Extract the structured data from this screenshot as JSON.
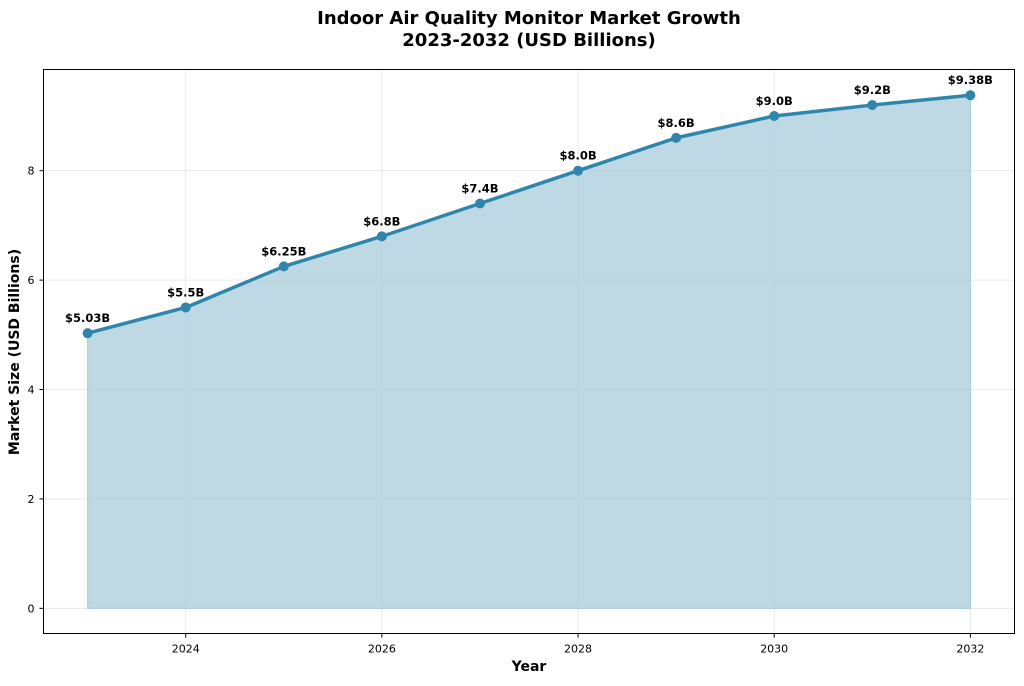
{
  "chart_data": {
    "type": "area",
    "title_line1": "Indoor Air Quality Monitor Market Growth",
    "title_line2": "2023-2032 (USD Billions)",
    "xlabel": "Year",
    "ylabel": "Market Size (USD Billions)",
    "x": [
      2023,
      2024,
      2025,
      2026,
      2027,
      2028,
      2029,
      2030,
      2031,
      2032
    ],
    "values": [
      5.03,
      5.5,
      6.25,
      6.8,
      7.4,
      8.0,
      8.6,
      9.0,
      9.2,
      9.38
    ],
    "data_labels": [
      "$5.03B",
      "$5.5B",
      "$6.25B",
      "$6.8B",
      "$7.4B",
      "$8.0B",
      "$8.6B",
      "$9.0B",
      "$9.2B",
      "$9.38B"
    ],
    "xticks": [
      "2024",
      "2026",
      "2028",
      "2030",
      "2032"
    ],
    "xtick_values": [
      2024,
      2026,
      2028,
      2030,
      2032
    ],
    "yticks": [
      "0",
      "2",
      "4",
      "6",
      "8"
    ],
    "ytick_values": [
      0,
      2,
      4,
      6,
      8
    ],
    "xlim": [
      2022.55,
      2032.45
    ],
    "ylim": [
      -0.46,
      9.85
    ],
    "grid": true,
    "line_color": "#2E86AB",
    "fill_color": "#A3C9D9"
  }
}
